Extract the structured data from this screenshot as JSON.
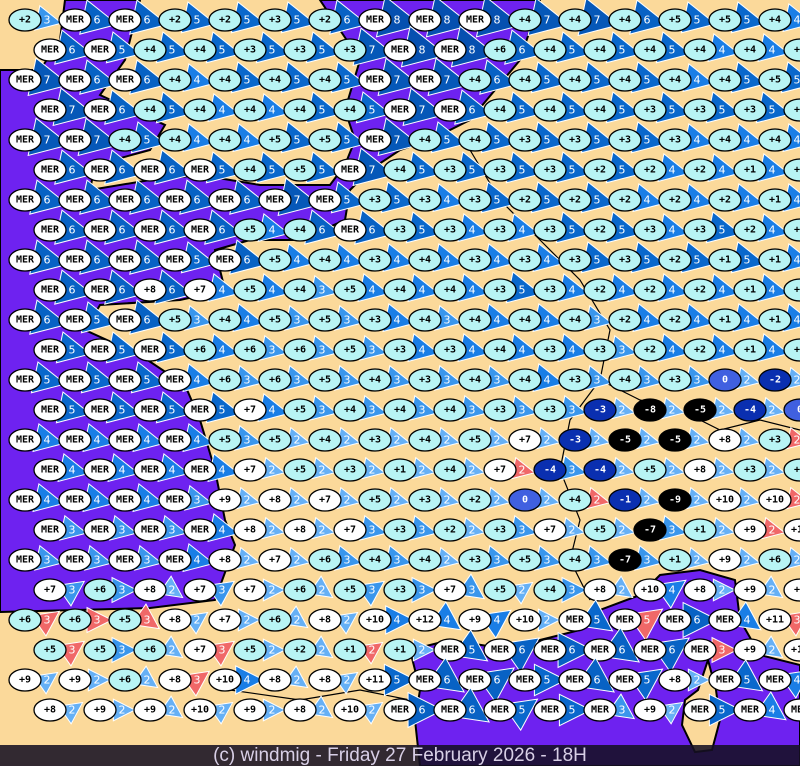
{
  "footer": "(c) windmig - Friday 27 February 2026 - 18H",
  "colors": {
    "land": "#fbd99a",
    "sea": "#6e22f0",
    "coast": "#000000",
    "wind_2": "#66b0f5",
    "wind_3": "#3a96ec",
    "wind_4": "#1a7ee6",
    "wind_5": "#0a68cc",
    "wind_6": "#0862c4",
    "wind_7": "#0658b8",
    "wind_8": "#0650b0",
    "wind_alert": "#f06868",
    "temp_mild": "#b8f4f4",
    "temp_warm": "#ffffff",
    "temp_zero": "#4060e0",
    "temp_negative": "#0a2fb0",
    "temp_cold": "#000000"
  },
  "legend_note": "MER",
  "map": {
    "rows": [
      {
        "t": [
          "+2",
          "MER",
          "MER",
          "+2",
          "+2",
          "+3",
          "+2",
          "MER",
          "MER",
          "MER",
          "+4",
          "+4",
          "+4",
          "+5",
          "+5",
          "+4"
        ],
        "w": [
          3,
          6,
          6,
          5,
          5,
          5,
          6,
          8,
          8,
          8,
          7,
          7,
          6,
          5,
          5,
          4
        ],
        "red": []
      },
      {
        "t": [
          "MER",
          "MER",
          "+4",
          "+4",
          "+3",
          "+3",
          "+3",
          "MER",
          "MER",
          "+6",
          "+4",
          "+4",
          "+4",
          "+4",
          "+4",
          "+5"
        ],
        "w": [
          6,
          5,
          5,
          5,
          5,
          5,
          7,
          8,
          8,
          6,
          5,
          5,
          5,
          4,
          4,
          4
        ],
        "red": []
      },
      {
        "t": [
          "MER",
          "MER",
          "MER",
          "+4",
          "+4",
          "+4",
          "+4",
          "MER",
          "MER",
          "+4",
          "+4",
          "+4",
          "+4",
          "+4",
          "+4",
          "+5"
        ],
        "w": [
          7,
          6,
          6,
          4,
          5,
          5,
          5,
          7,
          7,
          6,
          5,
          5,
          5,
          4,
          5,
          5
        ],
        "red": []
      },
      {
        "t": [
          "MER",
          "MER",
          "+4",
          "+4",
          "+4",
          "+4",
          "+4",
          "MER",
          "MER",
          "+4",
          "+4",
          "+4",
          "+3",
          "+3",
          "+3",
          "+5"
        ],
        "w": [
          7,
          6,
          5,
          4,
          4,
          5,
          5,
          7,
          6,
          5,
          5,
          5,
          5,
          5,
          5,
          5
        ],
        "red": []
      },
      {
        "t": [
          "MER",
          "MER",
          "+4",
          "+4",
          "+4",
          "+5",
          "+5",
          "MER",
          "+4",
          "+4",
          "+3",
          "+3",
          "+3",
          "+3",
          "+4",
          "+4"
        ],
        "w": [
          7,
          7,
          5,
          4,
          4,
          5,
          5,
          7,
          5,
          5,
          5,
          5,
          5,
          4,
          4,
          4
        ],
        "red": []
      },
      {
        "t": [
          "MER",
          "MER",
          "MER",
          "MER",
          "+4",
          "+5",
          "MER",
          "+4",
          "+3",
          "+3",
          "+3",
          "+2",
          "+2",
          "+2",
          "+1",
          "+1"
        ],
        "w": [
          6,
          6,
          6,
          5,
          5,
          5,
          7,
          5,
          5,
          5,
          5,
          5,
          4,
          4,
          4,
          4
        ],
        "red": []
      },
      {
        "t": [
          "MER",
          "MER",
          "MER",
          "MER",
          "MER",
          "MER",
          "MER",
          "+3",
          "+3",
          "+3",
          "+2",
          "+2",
          "+2",
          "+2",
          "+2",
          "+1"
        ],
        "w": [
          6,
          6,
          6,
          6,
          6,
          7,
          5,
          5,
          4,
          5,
          5,
          5,
          4,
          4,
          4,
          4
        ],
        "red": []
      },
      {
        "t": [
          "MER",
          "MER",
          "MER",
          "MER",
          "+5",
          "+4",
          "MER",
          "+3",
          "+3",
          "+3",
          "+3",
          "+2",
          "+3",
          "+3",
          "+2",
          "+1"
        ],
        "w": [
          6,
          6,
          6,
          6,
          4,
          6,
          6,
          5,
          4,
          4,
          5,
          5,
          4,
          5,
          4,
          4
        ],
        "red": []
      },
      {
        "t": [
          "MER",
          "MER",
          "MER",
          "MER",
          "MER",
          "+5",
          "+4",
          "+3",
          "+4",
          "+3",
          "+3",
          "+3",
          "+3",
          "+2",
          "+1",
          "+1"
        ],
        "w": [
          6,
          6,
          6,
          5,
          6,
          4,
          4,
          4,
          4,
          4,
          4,
          5,
          5,
          5,
          5,
          4
        ],
        "red": []
      },
      {
        "t": [
          "MER",
          "MER",
          "+8",
          "+7",
          "+5",
          "+4",
          "+5",
          "+4",
          "+4",
          "+3",
          "+3",
          "+2",
          "+2",
          "+2",
          "+1",
          "+1"
        ],
        "w": [
          6,
          6,
          6,
          4,
          4,
          3,
          4,
          4,
          4,
          5,
          4,
          4,
          4,
          4,
          4,
          4
        ],
        "red": []
      },
      {
        "t": [
          "MER",
          "MER",
          "MER",
          "+5",
          "+4",
          "+5",
          "+5",
          "+3",
          "+4",
          "+4",
          "+4",
          "+4",
          "+2",
          "+2",
          "+1",
          "+1"
        ],
        "w": [
          6,
          5,
          6,
          3,
          4,
          3,
          3,
          4,
          3,
          4,
          4,
          3,
          4,
          4,
          4,
          4
        ],
        "red": []
      },
      {
        "t": [
          "MER",
          "MER",
          "MER",
          "+6",
          "+6",
          "+6",
          "+5",
          "+3",
          "+3",
          "+4",
          "+3",
          "+3",
          "+2",
          "+2",
          "+1",
          "+2"
        ],
        "w": [
          5,
          5,
          5,
          4,
          3,
          3,
          3,
          4,
          4,
          4,
          4,
          3,
          4,
          4,
          4,
          4
        ],
        "red": []
      },
      {
        "t": [
          "MER",
          "MER",
          "MER",
          "MER",
          "+6",
          "+6",
          "+5",
          "+4",
          "+3",
          "+4",
          "+4",
          "+3",
          "+4",
          "+3",
          "0",
          "-2"
        ],
        "w": [
          5,
          5,
          5,
          4,
          3,
          3,
          3,
          3,
          3,
          3,
          4,
          3,
          3,
          3,
          2,
          2
        ],
        "red": []
      },
      {
        "t": [
          "MER",
          "MER",
          "MER",
          "MER",
          "+7",
          "+5",
          "+4",
          "+4",
          "+4",
          "+3",
          "+3",
          "-3",
          "-8",
          "-5",
          "-4",
          "0"
        ],
        "w": [
          5,
          5,
          5,
          5,
          4,
          3,
          3,
          3,
          3,
          3,
          3,
          2,
          2,
          2,
          2,
          2
        ],
        "red": []
      },
      {
        "t": [
          "MER",
          "MER",
          "MER",
          "MER",
          "+5",
          "+5",
          "+4",
          "+3",
          "+4",
          "+5",
          "+7",
          "-3",
          "-5",
          "-5",
          "+8",
          "+3"
        ],
        "w": [
          4,
          4,
          4,
          4,
          3,
          2,
          2,
          2,
          2,
          2,
          2,
          2,
          2,
          2,
          2,
          2
        ],
        "red": [
          15
        ]
      },
      {
        "t": [
          "MER",
          "MER",
          "MER",
          "MER",
          "+7",
          "+5",
          "+3",
          "+1",
          "+4",
          "+7",
          "-4",
          "-4",
          "+5",
          "+8",
          "+3",
          "+3"
        ],
        "w": [
          4,
          4,
          4,
          4,
          2,
          2,
          2,
          2,
          2,
          2,
          3,
          2,
          2,
          2,
          2,
          2
        ],
        "red": [
          9
        ]
      },
      {
        "t": [
          "MER",
          "MER",
          "MER",
          "MER",
          "+9",
          "+8",
          "+7",
          "+5",
          "+3",
          "+2",
          "0",
          "+4",
          "-1",
          "-9",
          "+10",
          "+10"
        ],
        "w": [
          4,
          4,
          4,
          3,
          2,
          2,
          2,
          2,
          2,
          2,
          2,
          2,
          2,
          2,
          2,
          2
        ],
        "red": [
          11,
          15
        ]
      },
      {
        "t": [
          "MER",
          "MER",
          "MER",
          "MER",
          "+8",
          "+8",
          "+7",
          "+3",
          "+2",
          "+3",
          "+7",
          "+5",
          "-7",
          "+1",
          "+9",
          "+10"
        ],
        "w": [
          3,
          3,
          3,
          4,
          2,
          2,
          3,
          3,
          2,
          3,
          2,
          2,
          3,
          2,
          2,
          2
        ],
        "red": [
          14
        ]
      },
      {
        "t": [
          "MER",
          "MER",
          "MER",
          "MER",
          "+8",
          "+7",
          "+6",
          "+4",
          "+4",
          "+3",
          "+5",
          "+4",
          "-7",
          "+1",
          "+9",
          "+6"
        ],
        "w": [
          3,
          3,
          3,
          4,
          2,
          2,
          3,
          3,
          2,
          3,
          3,
          3,
          3,
          2,
          2,
          2
        ],
        "red": []
      },
      {
        "t": [
          "+7",
          "+6",
          "+8",
          "+7",
          "+7",
          "+6",
          "+5",
          "+3",
          "+7",
          "+5",
          "+4",
          "+8",
          "+10",
          "+8",
          "+9",
          "+9"
        ],
        "w": [
          3,
          3,
          2,
          3,
          2,
          2,
          3,
          3,
          3,
          2,
          3,
          2,
          4,
          2,
          2,
          3
        ],
        "red": []
      },
      {
        "t": [
          "+6",
          "+6",
          "+5",
          "+8",
          "+7",
          "+6",
          "+8",
          "+10",
          "+12",
          "+9",
          "+10",
          "MER",
          "MER",
          "MER",
          "MER",
          "+11"
        ],
        "w": [
          3,
          3,
          3,
          2,
          2,
          2,
          2,
          4,
          4,
          4,
          2,
          5,
          5,
          6,
          4,
          3
        ],
        "red": [
          0,
          1,
          2,
          12,
          15
        ]
      },
      {
        "t": [
          "+5",
          "+5",
          "+6",
          "+7",
          "+5",
          "+2",
          "+1",
          "+1",
          "MER",
          "MER",
          "MER",
          "MER",
          "MER",
          "MER",
          "+9",
          "+11"
        ],
        "w": [
          3,
          3,
          2,
          3,
          2,
          2,
          2,
          2,
          5,
          6,
          6,
          6,
          6,
          3,
          2,
          3
        ],
        "red": [
          0,
          3,
          6,
          13,
          15
        ]
      },
      {
        "t": [
          "+9",
          "+9",
          "+6",
          "+8",
          "+10",
          "+8",
          "+8",
          "+11",
          "MER",
          "MER",
          "MER",
          "MER",
          "MER",
          "+8",
          "MER",
          "MER"
        ],
        "w": [
          2,
          2,
          2,
          3,
          4,
          2,
          2,
          5,
          6,
          6,
          5,
          6,
          5,
          2,
          5,
          4
        ],
        "red": [
          3
        ]
      },
      {
        "t": [
          "+8",
          "+9",
          "+9",
          "+10",
          "+9",
          "+8",
          "+10",
          "MER",
          "MER",
          "MER",
          "MER",
          "MER",
          "+9",
          "MER",
          "MER",
          "MER"
        ],
        "w": [
          2,
          2,
          2,
          2,
          2,
          2,
          2,
          6,
          6,
          5,
          5,
          3,
          2,
          5,
          4,
          4
        ],
        "red": []
      }
    ]
  }
}
